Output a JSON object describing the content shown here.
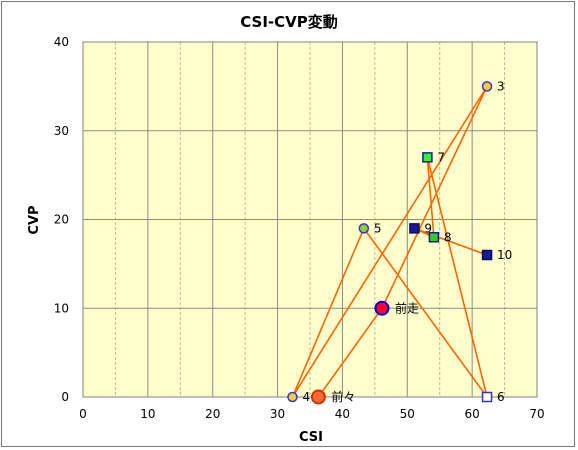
{
  "chart_data": {
    "type": "scatter",
    "title": "CSI-CVP変動",
    "xlabel": "CSI",
    "ylabel": "CVP",
    "xlim": [
      0,
      70
    ],
    "ylim": [
      0,
      40
    ],
    "xticks": [
      "0",
      "10",
      "20",
      "30",
      "40",
      "50",
      "60",
      "70"
    ],
    "yticks": [
      "0",
      "10",
      "20",
      "30",
      "40"
    ],
    "grid": true,
    "plot_background": "#ffffcc",
    "line_color": "#ff6600",
    "path_order": [
      "前々",
      "前走",
      "3",
      "4",
      "5",
      "6",
      "7",
      "8",
      "9",
      "10"
    ],
    "points": [
      {
        "label": "前々",
        "x": 36.3,
        "y": 0,
        "shape": "circle",
        "size": "large",
        "fill": "#ff6633",
        "stroke": "#cc3300"
      },
      {
        "label": "前走",
        "x": 46.1,
        "y": 10,
        "shape": "circle",
        "size": "large",
        "fill": "#ff0033",
        "stroke": "#0000cc"
      },
      {
        "label": "3",
        "x": 62.3,
        "y": 35,
        "shape": "circle",
        "size": "small",
        "fill": "#ffcc33",
        "stroke": "#3333cc"
      },
      {
        "label": "4",
        "x": 32.3,
        "y": 0,
        "shape": "circle",
        "size": "small",
        "fill": "#ffcc33",
        "stroke": "#3333cc"
      },
      {
        "label": "5",
        "x": 43.3,
        "y": 19,
        "shape": "circle",
        "size": "small",
        "fill": "#99cc33",
        "stroke": "#3333cc"
      },
      {
        "label": "6",
        "x": 62.3,
        "y": 0,
        "shape": "square",
        "size": "small",
        "fill": "#ffffff",
        "stroke": "#3333cc"
      },
      {
        "label": "7",
        "x": 53.1,
        "y": 27,
        "shape": "square",
        "size": "small",
        "fill": "#33ee33",
        "stroke": "#1a1a99"
      },
      {
        "label": "8",
        "x": 54.1,
        "y": 18,
        "shape": "square",
        "size": "small",
        "fill": "#33cc33",
        "stroke": "#1a1a99"
      },
      {
        "label": "9",
        "x": 51.1,
        "y": 19,
        "shape": "square",
        "size": "small",
        "fill": "#1a1a99",
        "stroke": "#0a0a66"
      },
      {
        "label": "10",
        "x": 62.3,
        "y": 16,
        "shape": "square",
        "size": "small",
        "fill": "#1a1a99",
        "stroke": "#0a0a66"
      }
    ]
  }
}
